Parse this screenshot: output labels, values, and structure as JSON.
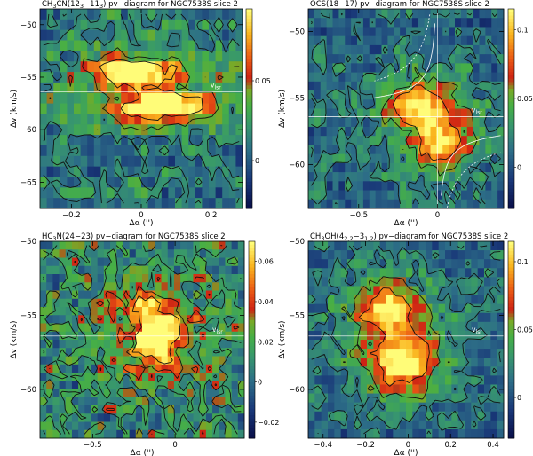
{
  "chart_data": [
    {
      "type": "heatmap",
      "title_prefix": "CH",
      "title_sub1": "3",
      "title_mid": "CN(12",
      "title_sub2": "3",
      "title_mid2": "−11",
      "title_sub3": "3",
      "title_suffix": ") pv−diagram for NGC7538S slice 2",
      "xlabel": "Δα ('')",
      "ylabel": "Δv (km/s)",
      "xlim": [
        -0.29,
        0.29
      ],
      "ylim": [
        -67.5,
        -48.5
      ],
      "xticks": [
        {
          "v": -0.2,
          "t": "−0.2"
        },
        {
          "v": 0,
          "t": "0"
        },
        {
          "v": 0.2,
          "t": "0.2"
        }
      ],
      "yticks": [
        {
          "v": -50,
          "t": "−50"
        },
        {
          "v": -55,
          "t": "−55"
        },
        {
          "v": -60,
          "t": "−60"
        },
        {
          "v": -65,
          "t": "−65"
        }
      ],
      "colorbar": {
        "min": -0.03,
        "max": 0.095,
        "ticks": [
          {
            "v": 0,
            "t": "0"
          },
          {
            "v": 0.05,
            "t": "0.05"
          }
        ]
      },
      "vlsr": -56.4,
      "vlsr_label": "v",
      "vlsr_sub": "lsr",
      "grid": [
        30,
        19
      ],
      "sources": [
        {
          "x": -0.02,
          "v": -54.3,
          "sx": 0.075,
          "sv": 0.9,
          "a": 0.075
        },
        {
          "x": 0.07,
          "v": -57.9,
          "sx": 0.08,
          "sv": 0.85,
          "a": 0.09
        },
        {
          "x": 0.0,
          "v": -56.2,
          "sx": 0.18,
          "sv": 2.6,
          "a": 0.035
        }
      ],
      "levels": [
        0.015,
        0.045,
        0.075
      ]
    },
    {
      "type": "heatmap",
      "title_prefix": "OCS(18−17) pv−diagram for NGC7538S slice 2",
      "title_sub1": "",
      "title_mid": "",
      "title_sub2": "",
      "title_mid2": "",
      "title_sub3": "",
      "title_suffix": "",
      "xlabel": "Δα ('')",
      "ylabel": "Δv (km/s)",
      "xlim": [
        -0.82,
        0.42
      ],
      "ylim": [
        -63.3,
        -48.3
      ],
      "xticks": [
        {
          "v": -0.5,
          "t": "−0.5"
        },
        {
          "v": 0,
          "t": "0"
        }
      ],
      "yticks": [
        {
          "v": -50,
          "t": "−50"
        },
        {
          "v": -55,
          "t": "−55"
        },
        {
          "v": -60,
          "t": "−60"
        }
      ],
      "colorbar": {
        "min": -0.03,
        "max": 0.115,
        "ticks": [
          {
            "v": 0,
            "t": "0"
          },
          {
            "v": 0.05,
            "t": "0.05"
          },
          {
            "v": 0.1,
            "t": "0.1"
          }
        ]
      },
      "vlsr": -56.4,
      "vlsr_label": "v",
      "vlsr_sub": "lsr",
      "grid": [
        32,
        22
      ],
      "sources": [
        {
          "x": -0.12,
          "v": -55.6,
          "sx": 0.12,
          "sv": 1.1,
          "a": 0.09
        },
        {
          "x": 0.02,
          "v": -58.4,
          "sx": 0.11,
          "sv": 1.3,
          "a": 0.08
        },
        {
          "x": -0.05,
          "v": -57.0,
          "sx": 0.3,
          "sv": 3.0,
          "a": 0.03
        }
      ],
      "levels": [
        0.02,
        0.05,
        0.08
      ],
      "curves": true
    },
    {
      "type": "heatmap",
      "title_prefix": "HC",
      "title_sub1": "3",
      "title_mid": "N(24−23)  pv−diagram for NGC7538S slice 2",
      "title_sub2": "",
      "title_mid2": "",
      "title_sub3": "",
      "title_suffix": "",
      "xlabel": "Δα ('')",
      "ylabel": "Δv (km/s)",
      "xlim": [
        -0.82,
        0.42
      ],
      "ylim": [
        -63.3,
        -50.0
      ],
      "xticks": [
        {
          "v": -0.5,
          "t": "−0.5"
        },
        {
          "v": 0,
          "t": "0"
        }
      ],
      "yticks": [
        {
          "v": -50,
          "t": "−50"
        },
        {
          "v": -55,
          "t": "−55"
        },
        {
          "v": -60,
          "t": "−60"
        }
      ],
      "colorbar": {
        "min": -0.028,
        "max": 0.07,
        "ticks": [
          {
            "v": -0.02,
            "t": "−0.02"
          },
          {
            "v": 0,
            "t": "0"
          },
          {
            "v": 0.02,
            "t": "0.02"
          },
          {
            "v": 0.04,
            "t": "0.04"
          },
          {
            "v": 0.06,
            "t": "0.06"
          }
        ]
      },
      "vlsr": -56.4,
      "vlsr_label": "v",
      "vlsr_sub": "lsr",
      "grid": [
        32,
        24
      ],
      "sources": [
        {
          "x": -0.1,
          "v": -56.8,
          "sx": 0.07,
          "sv": 1.3,
          "a": 0.06
        },
        {
          "x": -0.17,
          "v": -55.0,
          "sx": 0.1,
          "sv": 1.0,
          "a": 0.035
        },
        {
          "x": -0.12,
          "v": -56.3,
          "sx": 0.25,
          "sv": 2.5,
          "a": 0.022
        }
      ],
      "levels": [
        0.015,
        0.035,
        0.055
      ]
    },
    {
      "type": "heatmap",
      "title_prefix": "CH",
      "title_sub1": "3",
      "title_mid": "OH(4",
      "title_sub2": "2,2",
      "title_mid2": "−3",
      "title_sub3": "1,2",
      "title_suffix": ") pv−diagram for NGC7538S slice 2",
      "xlabel": "Δα ('')",
      "ylabel": "Δv (km/s)",
      "xlim": [
        -0.47,
        0.45
      ],
      "ylim": [
        -63.3,
        -50.0
      ],
      "xticks": [
        {
          "v": -0.4,
          "t": "−0.4"
        },
        {
          "v": -0.2,
          "t": "−0.2"
        },
        {
          "v": 0,
          "t": "0"
        },
        {
          "v": 0.2,
          "t": "0.2"
        },
        {
          "v": 0.4,
          "t": "0.4"
        }
      ],
      "yticks": [
        {
          "v": -50,
          "t": "−50"
        },
        {
          "v": -55,
          "t": "−55"
        },
        {
          "v": -60,
          "t": "−60"
        }
      ],
      "colorbar": {
        "min": -0.03,
        "max": 0.115,
        "ticks": [
          {
            "v": 0,
            "t": "0"
          },
          {
            "v": 0.05,
            "t": "0.05"
          },
          {
            "v": 0.1,
            "t": "0.1"
          }
        ]
      },
      "vlsr": -56.4,
      "vlsr_label": "v",
      "vlsr_sub": "lsr",
      "grid": [
        30,
        22
      ],
      "sources": [
        {
          "x": -0.1,
          "v": -54.5,
          "sx": 0.09,
          "sv": 1.0,
          "a": 0.085
        },
        {
          "x": -0.03,
          "v": -58.3,
          "sx": 0.1,
          "sv": 1.3,
          "a": 0.085
        },
        {
          "x": -0.05,
          "v": -56.5,
          "sx": 0.2,
          "sv": 3.0,
          "a": 0.04
        }
      ],
      "levels": [
        0.02,
        0.05,
        0.08
      ]
    }
  ]
}
